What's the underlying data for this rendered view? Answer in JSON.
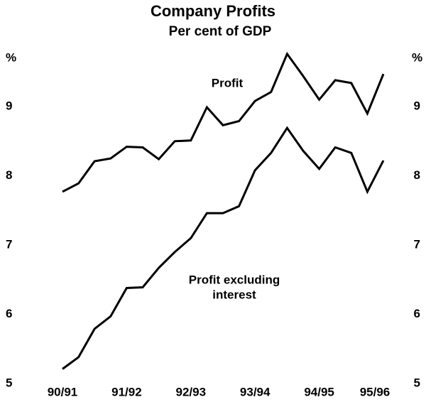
{
  "chart_data": {
    "type": "line",
    "title": "Company Profits",
    "subtitle": "Per cent of GDP",
    "ylabel": "%",
    "y2label": "%",
    "categories": [
      "90/91",
      null,
      null,
      null,
      "91/92",
      null,
      null,
      null,
      "92/93",
      null,
      null,
      null,
      "93/94",
      null,
      null,
      null,
      "94/95",
      null,
      null,
      null,
      "95/96"
    ],
    "series": [
      {
        "color": "#000000",
        "values": [
          7.77,
          7.89,
          8.21,
          8.25,
          8.42,
          8.41,
          8.24,
          8.5,
          8.51,
          8.99,
          8.73,
          8.79,
          9.08,
          9.21,
          9.76,
          9.44,
          9.1,
          9.38,
          9.34,
          8.9,
          9.47
        ]
      },
      {
        "color": "#000000",
        "values": [
          5.21,
          5.38,
          5.79,
          5.97,
          6.38,
          6.39,
          6.67,
          6.9,
          7.1,
          7.46,
          7.46,
          7.56,
          8.08,
          8.33,
          8.69,
          8.36,
          8.1,
          8.41,
          8.33,
          7.77,
          8.22
        ]
      }
    ],
    "annotations": [
      "Profit",
      "Profit excluding",
      "interest"
    ],
    "ylim": [
      5,
      10
    ],
    "yticks": [
      5,
      6,
      7,
      8,
      9
    ],
    "y2lim": [
      5,
      10
    ],
    "y2ticks": [
      5,
      6,
      7,
      8,
      9
    ]
  }
}
